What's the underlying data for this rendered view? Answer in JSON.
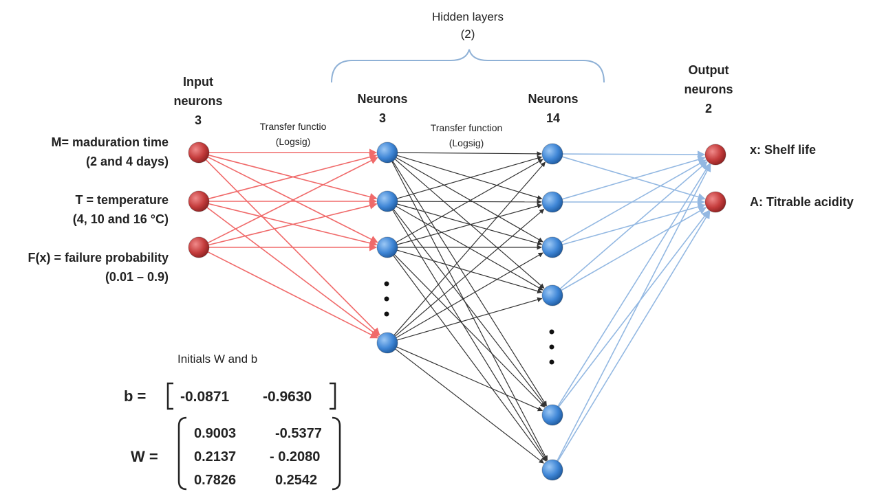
{
  "hidden_layers": {
    "title": "Hidden layers",
    "count": "(2)"
  },
  "input_header": [
    "Input",
    "neurons",
    "3"
  ],
  "hidden1_header": [
    "Neurons",
    "3"
  ],
  "hidden2_header": [
    "Neurons",
    "14"
  ],
  "output_header": [
    "Output",
    "neurons",
    "2"
  ],
  "transfer1": [
    "Transfer functio",
    "(Logsig)"
  ],
  "transfer2": [
    "Transfer function",
    "(Logsig)"
  ],
  "inputs": [
    {
      "line1": "M= maduration time",
      "line2": "(2 and 4 days)"
    },
    {
      "line1": "T = temperature",
      "line2": "(4, 10 and 16 °C)"
    },
    {
      "line1": "F(x) = failure probability",
      "line2": "(0.01 – 0.9)"
    }
  ],
  "outputs": [
    "x: Shelf life",
    "A: Titrable acidity"
  ],
  "weights": {
    "title": "Initials W and b",
    "b_label": "b =",
    "b_values": [
      "-0.0871",
      "-0.9630"
    ],
    "w_label": "W =",
    "w_rows": [
      [
        "0.9003",
        "-0.5377"
      ],
      [
        "0.2137",
        "- 0.2080"
      ],
      [
        "0.7826",
        "0.2542"
      ]
    ]
  },
  "colors": {
    "input_neuron": "#c43c3c",
    "hidden_neuron": "#3f86d6",
    "output_neuron": "#c43c3c",
    "input_links": "#f06a6a",
    "hidden_links": "#333333",
    "output_links": "#93b8e2",
    "brace": "#8fb1d6"
  }
}
